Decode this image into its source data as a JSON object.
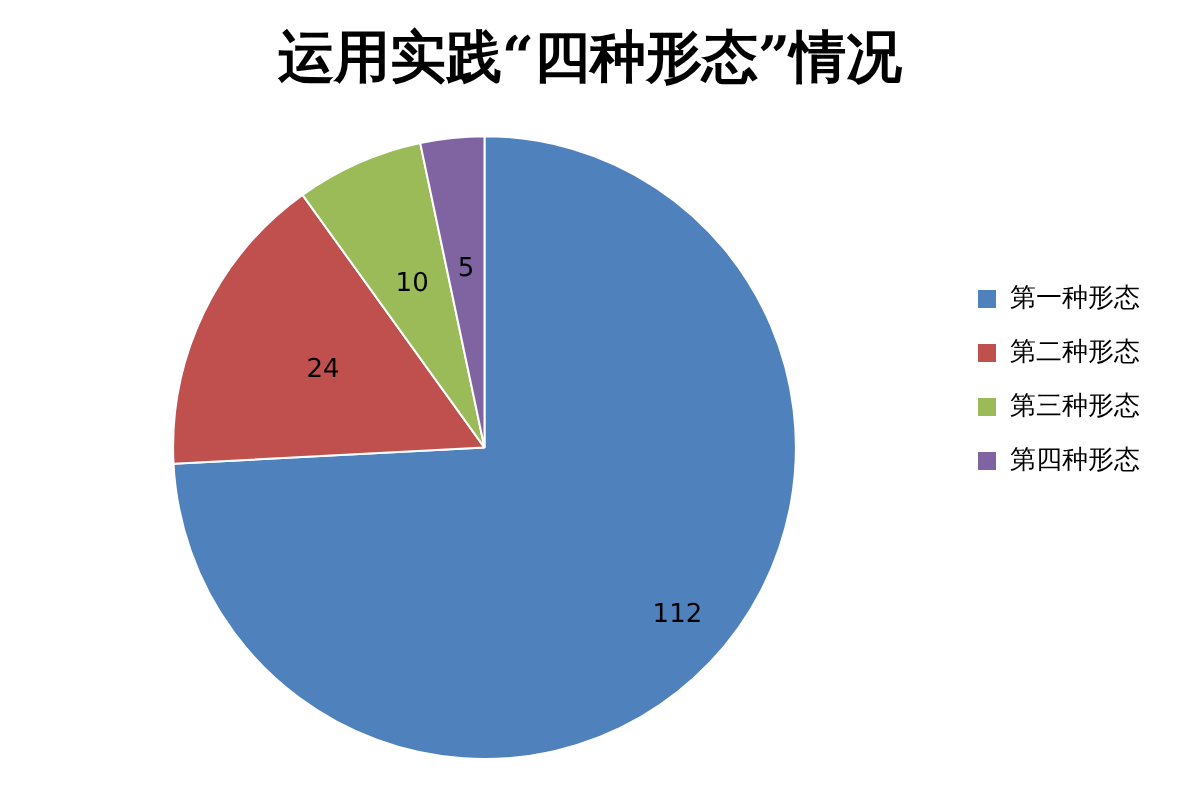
{
  "chart_data": {
    "type": "pie",
    "title": "运用实践“四种形态”情况",
    "categories": [
      "第一种形态",
      "第二种形态",
      "第三种形态",
      "第四种形态"
    ],
    "values": [
      112,
      24,
      10,
      5
    ],
    "colors": [
      "#4f81bd",
      "#c0504d",
      "#9bbb59",
      "#8064a2"
    ],
    "data_labels": true,
    "legend": "right"
  }
}
